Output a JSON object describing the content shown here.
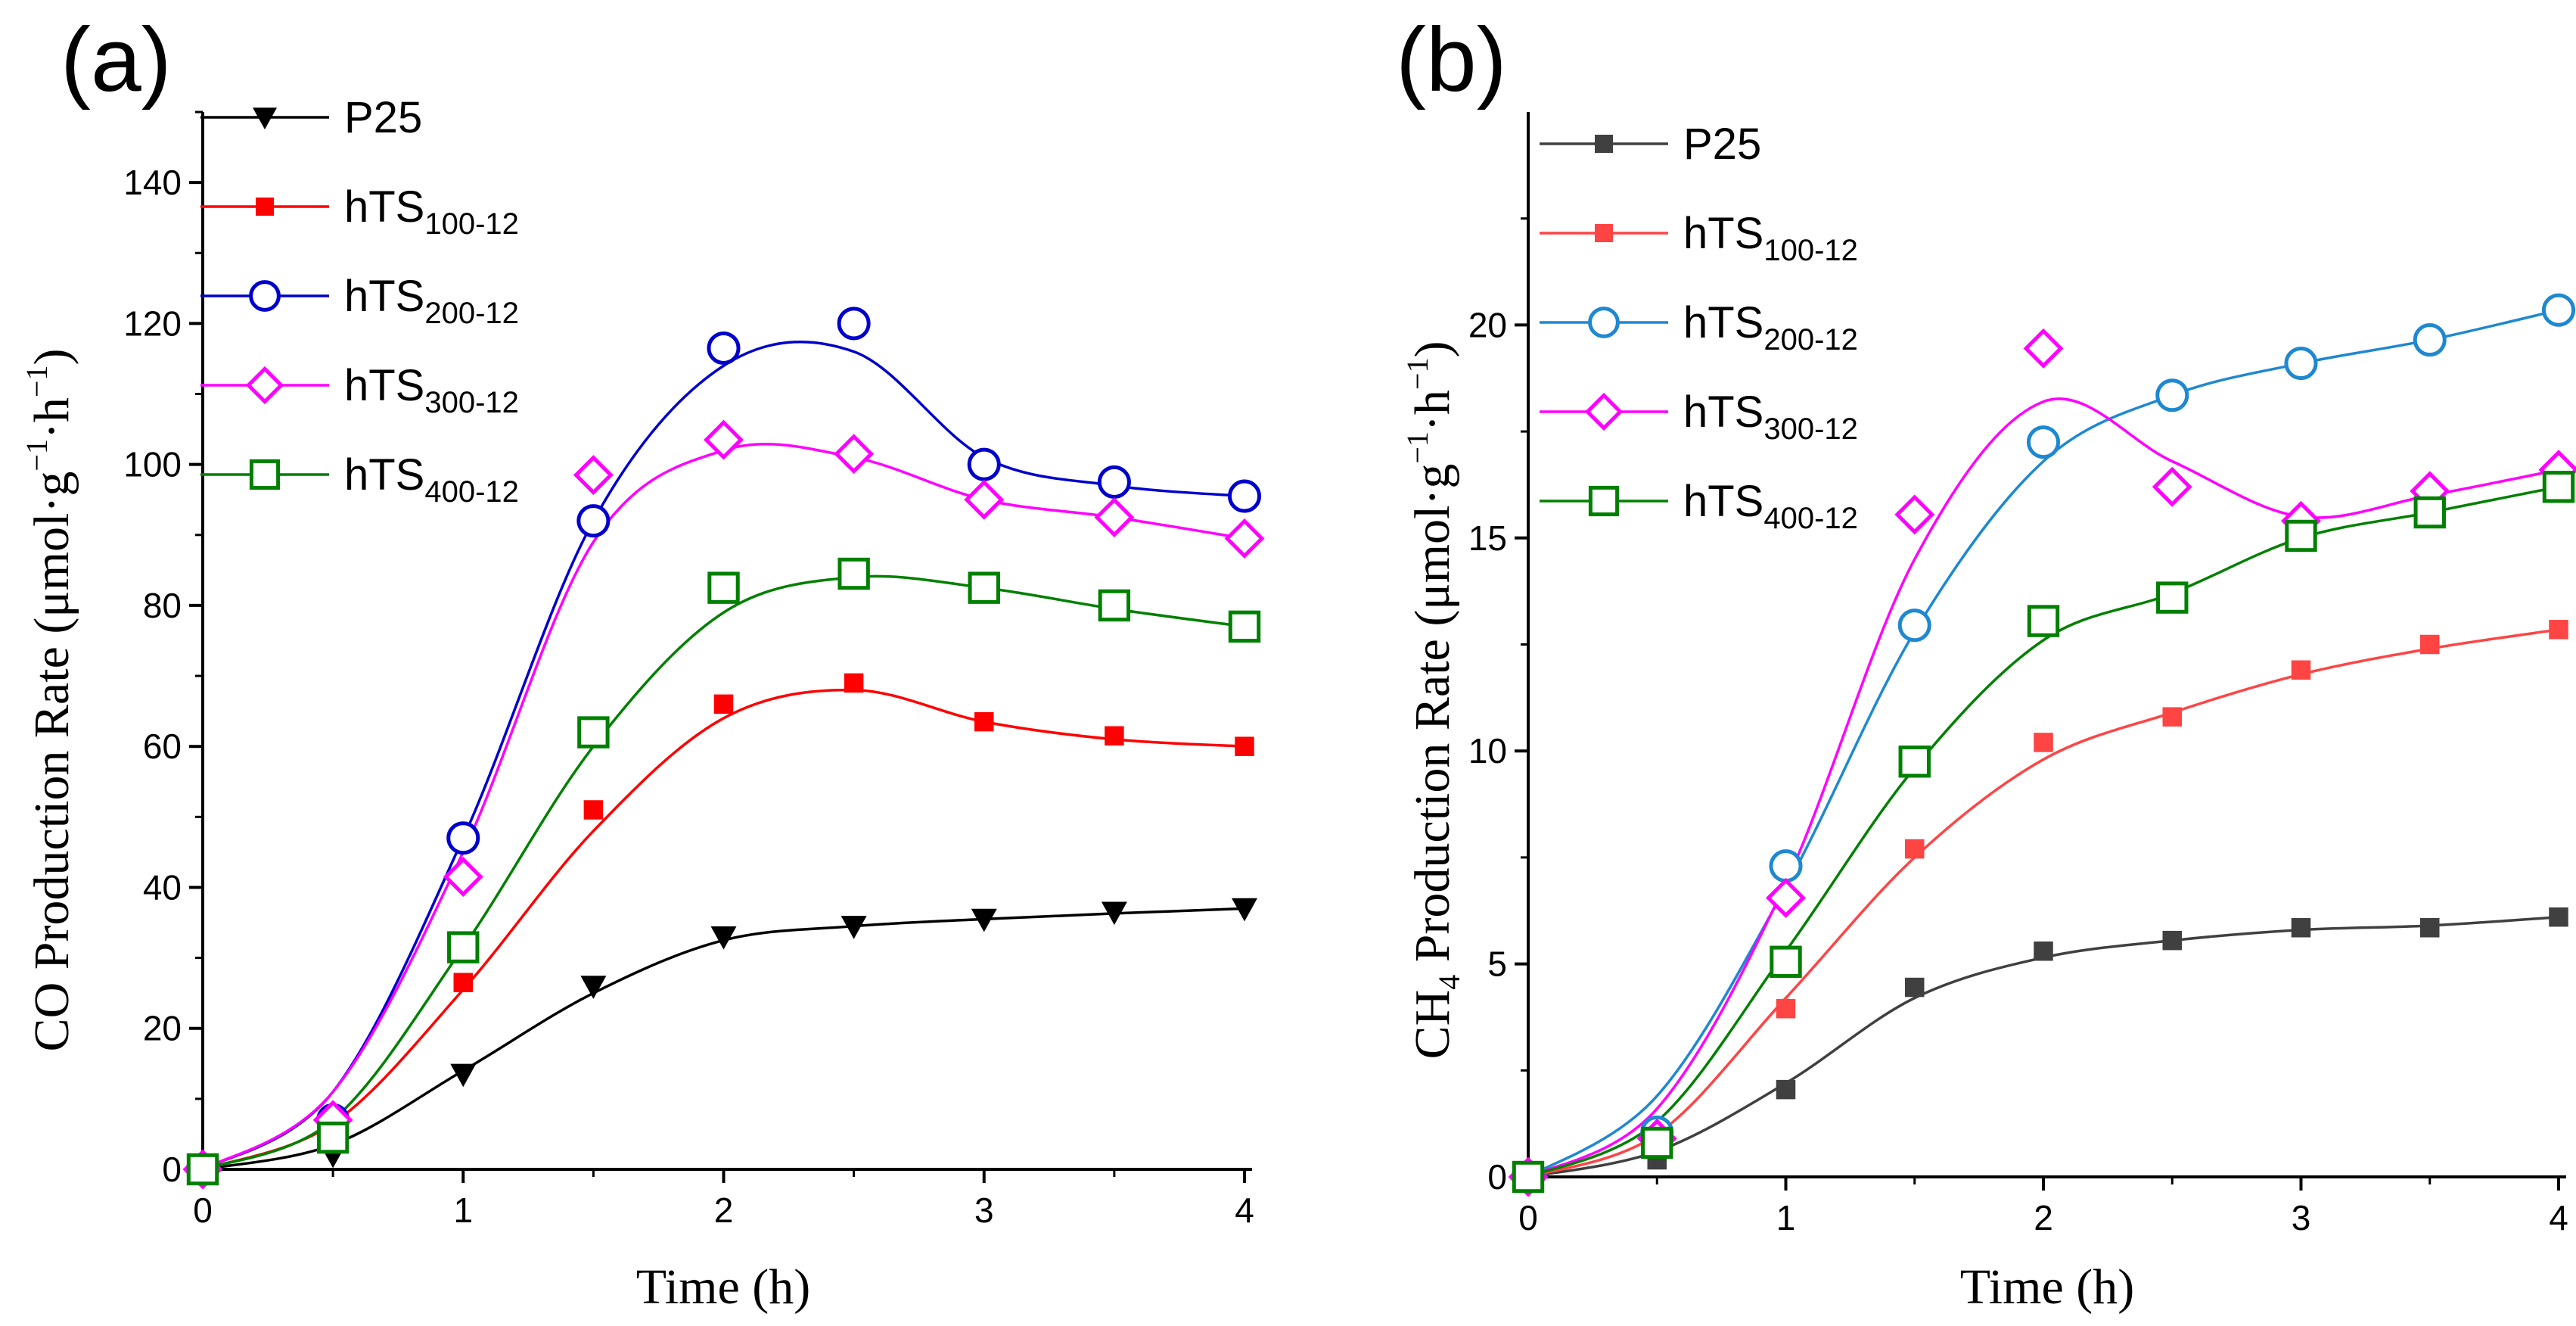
{
  "chart_data": [
    {
      "panel": "(a)",
      "type": "scatter",
      "xlabel": "Time (h)",
      "ylabel": {
        "main": "CO Production Rate (μmol·g",
        "sup1": "−1",
        "mid": "·h",
        "sup2": "−1",
        "end": ")"
      },
      "xlim": [
        0,
        4
      ],
      "ylim": [
        0,
        150
      ],
      "xticks": [
        "0",
        "1",
        "2",
        "3",
        "4"
      ],
      "yticks": [
        "0",
        "20",
        "40",
        "60",
        "80",
        "100",
        "120",
        "140"
      ],
      "x": [
        0,
        0.5,
        1,
        1.5,
        2,
        2.5,
        3,
        3.5,
        4
      ],
      "series": [
        {
          "name": "P25",
          "sub": "",
          "marker": "triangle-down",
          "color": "#000000",
          "values": [
            0,
            2,
            13.5,
            26,
            33,
            34.5,
            35.5,
            36.5,
            37
          ],
          "fit": [
            0,
            3.5,
            14,
            25,
            32.5,
            34.5,
            35.5,
            36.3,
            37
          ]
        },
        {
          "name": "hTS",
          "sub": "100-12",
          "marker": "square-filled",
          "color": "#ff0000",
          "values": [
            0,
            5,
            26.5,
            51,
            66,
            69,
            63.5,
            61.5,
            60
          ],
          "fit": [
            0,
            6.5,
            25.5,
            48,
            64,
            68,
            63.5,
            61,
            60
          ]
        },
        {
          "name": "hTS",
          "sub": "200-12",
          "marker": "circle-open",
          "color": "#0000cc",
          "values": [
            0,
            7,
            47,
            92,
            116.5,
            120,
            100,
            97.5,
            95.5
          ],
          "fit": [
            0,
            11,
            47,
            92,
            114,
            116,
            101,
            97,
            95.5
          ]
        },
        {
          "name": "hTS",
          "sub": "300-12",
          "marker": "diamond-open",
          "color": "#ff00ff",
          "values": [
            0,
            7,
            41.5,
            98.5,
            103.5,
            101.5,
            95,
            92.5,
            89.5
          ],
          "fit": [
            0,
            11,
            45,
            89,
            102,
            101,
            95,
            92.5,
            89.5
          ]
        },
        {
          "name": "hTS",
          "sub": "400-12",
          "marker": "square-open",
          "color": "#008000",
          "values": [
            0,
            4.5,
            31.5,
            62,
            82.5,
            84.5,
            82.5,
            80,
            77
          ],
          "fit": [
            0,
            7,
            31.5,
            60,
            79,
            84,
            82.5,
            79.5,
            77
          ]
        }
      ]
    },
    {
      "panel": "(b)",
      "type": "scatter",
      "xlabel": "Time (h)",
      "ylabel": {
        "main": "CH",
        "sub": "4",
        "rest": " Production Rate (μmol·g",
        "sup1": "−1",
        "mid": "·h",
        "sup2": "−1",
        "end": ")"
      },
      "xlim": [
        0,
        4
      ],
      "ylim": [
        0,
        25
      ],
      "xticks": [
        "0",
        "1",
        "2",
        "3",
        "4"
      ],
      "yticks": [
        "0",
        "5",
        "10",
        "15",
        "20"
      ],
      "x": [
        0,
        0.5,
        1,
        1.5,
        2,
        2.5,
        3,
        3.5,
        4
      ],
      "series": [
        {
          "name": "P25",
          "sub": "",
          "marker": "square-filled",
          "color": "#404040",
          "values": [
            0,
            0.4,
            2.05,
            4.45,
            5.3,
            5.55,
            5.85,
            5.85,
            6.1
          ],
          "fit": [
            0,
            0.6,
            2.2,
            4.2,
            5.15,
            5.55,
            5.8,
            5.9,
            6.1
          ]
        },
        {
          "name": "hTS",
          "sub": "100-12",
          "marker": "square-filled",
          "color": "#ff4444",
          "values": [
            0,
            0.8,
            3.95,
            7.7,
            10.2,
            10.8,
            11.9,
            12.5,
            12.85
          ],
          "fit": [
            0,
            1.0,
            4.2,
            7.5,
            9.8,
            10.9,
            11.8,
            12.4,
            12.85
          ]
        },
        {
          "name": "hTS",
          "sub": "200-12",
          "marker": "circle-open",
          "color": "#1e88d0",
          "values": [
            0,
            1.05,
            7.3,
            12.95,
            17.25,
            18.35,
            19.1,
            19.65,
            20.35
          ],
          "fit": [
            0,
            1.9,
            6.8,
            12.8,
            16.8,
            18.35,
            19.1,
            19.65,
            20.35
          ]
        },
        {
          "name": "hTS",
          "sub": "300-12",
          "marker": "diamond-open",
          "color": "#ff00ff",
          "values": [
            0,
            0.9,
            6.55,
            15.55,
            19.45,
            16.2,
            15.4,
            16.1,
            16.6
          ],
          "fit": [
            0,
            1.6,
            6.9,
            14.5,
            18.2,
            16.8,
            15.5,
            16.0,
            16.6
          ]
        },
        {
          "name": "hTS",
          "sub": "400-12",
          "marker": "square-open",
          "color": "#008000",
          "values": [
            0,
            0.8,
            5.05,
            9.75,
            13.05,
            13.6,
            15.05,
            15.6,
            16.2
          ],
          "fit": [
            0,
            1.3,
            5.3,
            9.6,
            12.6,
            13.7,
            15.0,
            15.6,
            16.2
          ]
        }
      ]
    }
  ]
}
